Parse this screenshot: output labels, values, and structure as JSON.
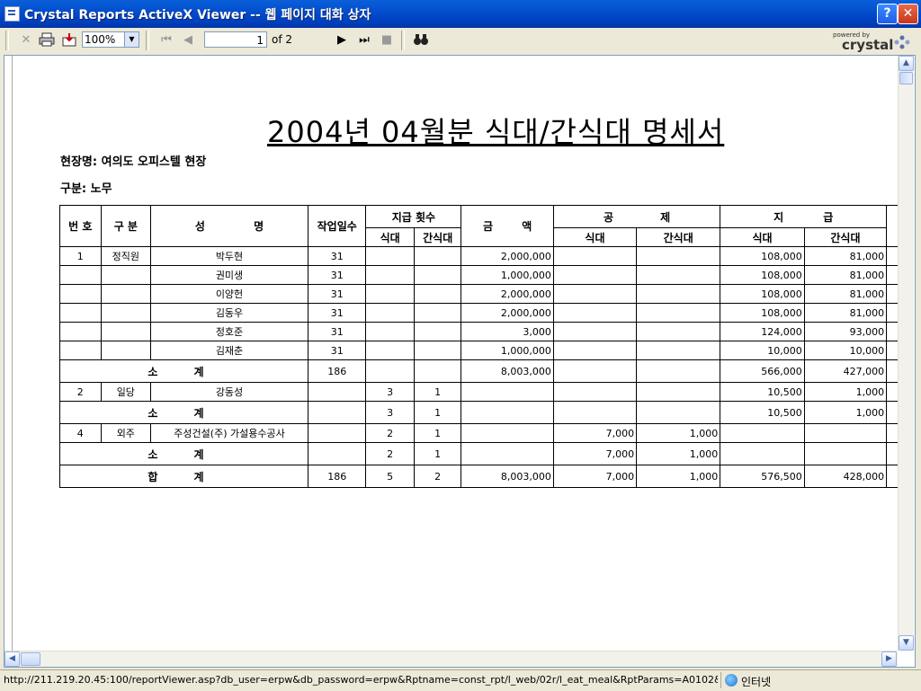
{
  "window": {
    "title": "Crystal Reports ActiveX Viewer -- 웹 페이지 대화 상자"
  },
  "toolbar": {
    "zoom": "100%",
    "page_number": "1",
    "page_total": "of 2",
    "brand_powered": "powered by",
    "brand_name": "crystal"
  },
  "report": {
    "title": "2004년 04월분 식대/간식대 명세서",
    "site": "현장명: 여의도 오피스텔 현장",
    "division": "구분: 노무",
    "headers": {
      "no": "번 호",
      "type": "구 분",
      "name": "성 명",
      "workdays": "작업일수",
      "count": "지급 횟수",
      "amount": "금 액",
      "deduct": "공 제",
      "pay": "지 급",
      "meal": "식대",
      "snack": "간식대"
    },
    "rows": [
      {
        "no": "1",
        "type": "정직원",
        "name": "박두현",
        "days": "31",
        "meal_cnt": "",
        "snack_cnt": "",
        "amount": "2,000,000",
        "ded_meal": "",
        "ded_snack": "",
        "pay_meal": "108,000",
        "pay_snack": "81,000"
      },
      {
        "no": "",
        "type": "",
        "name": "권미생",
        "days": "31",
        "meal_cnt": "",
        "snack_cnt": "",
        "amount": "1,000,000",
        "ded_meal": "",
        "ded_snack": "",
        "pay_meal": "108,000",
        "pay_snack": "81,000"
      },
      {
        "no": "",
        "type": "",
        "name": "이양헌",
        "days": "31",
        "meal_cnt": "",
        "snack_cnt": "",
        "amount": "2,000,000",
        "ded_meal": "",
        "ded_snack": "",
        "pay_meal": "108,000",
        "pay_snack": "81,000"
      },
      {
        "no": "",
        "type": "",
        "name": "김동우",
        "days": "31",
        "meal_cnt": "",
        "snack_cnt": "",
        "amount": "2,000,000",
        "ded_meal": "",
        "ded_snack": "",
        "pay_meal": "108,000",
        "pay_snack": "81,000"
      },
      {
        "no": "",
        "type": "",
        "name": "정호준",
        "days": "31",
        "meal_cnt": "",
        "snack_cnt": "",
        "amount": "3,000",
        "ded_meal": "",
        "ded_snack": "",
        "pay_meal": "124,000",
        "pay_snack": "93,000"
      },
      {
        "no": "",
        "type": "",
        "name": "김재춘",
        "days": "31",
        "meal_cnt": "",
        "snack_cnt": "",
        "amount": "1,000,000",
        "ded_meal": "",
        "ded_snack": "",
        "pay_meal": "10,000",
        "pay_snack": "10,000"
      },
      {
        "subtotal": "소 계",
        "days": "186",
        "meal_cnt": "",
        "snack_cnt": "",
        "amount": "8,003,000",
        "ded_meal": "",
        "ded_snack": "",
        "pay_meal": "566,000",
        "pay_snack": "427,000"
      },
      {
        "no": "2",
        "type": "일당",
        "name": "강동성",
        "days": "",
        "meal_cnt": "3",
        "snack_cnt": "1",
        "amount": "",
        "ded_meal": "",
        "ded_snack": "",
        "pay_meal": "10,500",
        "pay_snack": "1,000"
      },
      {
        "subtotal": "소 계",
        "days": "",
        "meal_cnt": "3",
        "snack_cnt": "1",
        "amount": "",
        "ded_meal": "",
        "ded_snack": "",
        "pay_meal": "10,500",
        "pay_snack": "1,000"
      },
      {
        "no": "4",
        "type": "외주",
        "name": "주성건설(주) 가설용수공사",
        "days": "",
        "meal_cnt": "2",
        "snack_cnt": "1",
        "amount": "",
        "ded_meal": "7,000",
        "ded_snack": "1,000",
        "pay_meal": "",
        "pay_snack": ""
      },
      {
        "subtotal": "소 계",
        "days": "",
        "meal_cnt": "2",
        "snack_cnt": "1",
        "amount": "",
        "ded_meal": "7,000",
        "ded_snack": "1,000",
        "pay_meal": "",
        "pay_snack": ""
      },
      {
        "subtotal": "합 계",
        "days": "186",
        "meal_cnt": "5",
        "snack_cnt": "2",
        "amount": "8,003,000",
        "ded_meal": "7,000",
        "ded_snack": "1,000",
        "pay_meal": "576,500",
        "pay_snack": "428,000"
      }
    ]
  },
  "status": {
    "url": "http://211.219.20.45:100/reportViewer.asp?db_user=erpw&db_password=erpw&Rptname=const_rpt/l_web/02r/l_eat_meal&RptParams=A0102&",
    "zone": "인터넷"
  },
  "colors": {
    "titlebar": "#0047c8",
    "chrome": "#ece9d8"
  }
}
